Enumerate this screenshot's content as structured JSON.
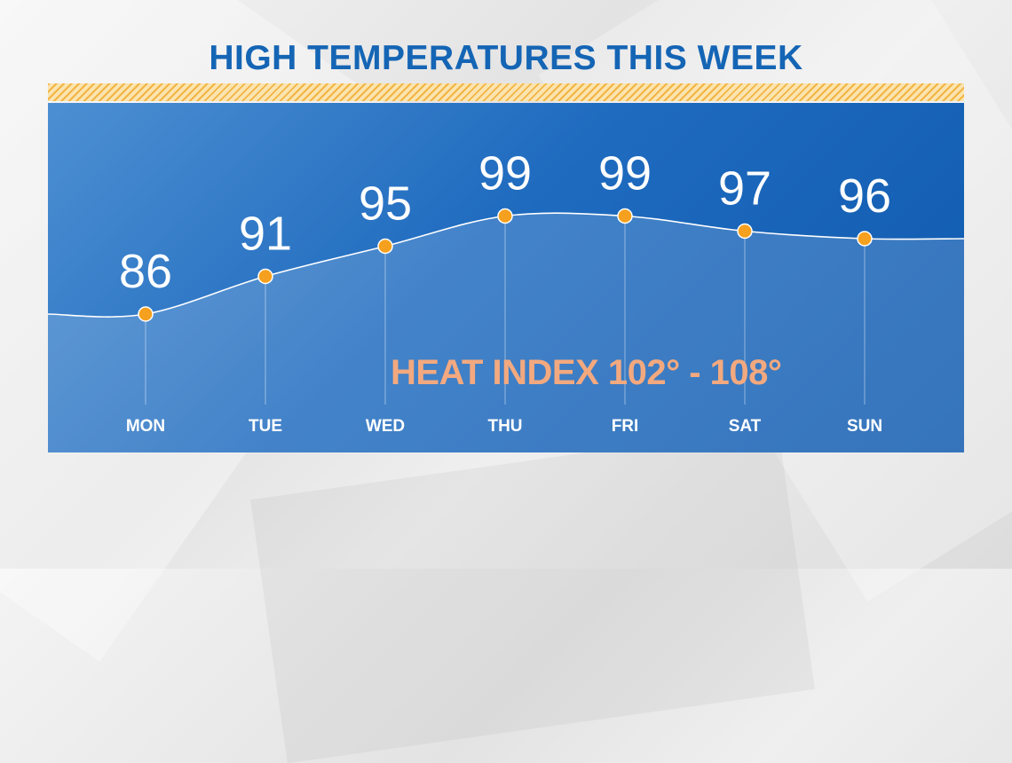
{
  "title": "HIGH TEMPERATURES THIS WEEK",
  "heat_index": "HEAT INDEX 102° - 108°",
  "colors": {
    "title": "#1565b5",
    "panel": "#1f6bbf",
    "point": "#f5a01e",
    "heat_index": "#f3a97f",
    "line": "#ffffff"
  },
  "chart_data": {
    "type": "line",
    "title": "HIGH TEMPERATURES THIS WEEK",
    "categories": [
      "MON",
      "TUE",
      "WED",
      "THU",
      "FRI",
      "SAT",
      "SUN"
    ],
    "values": [
      86,
      91,
      95,
      99,
      99,
      97,
      96
    ],
    "data_labels": [
      "86",
      "91",
      "95",
      "99",
      "99",
      "97",
      "96"
    ],
    "grid": false,
    "legend": "none"
  }
}
